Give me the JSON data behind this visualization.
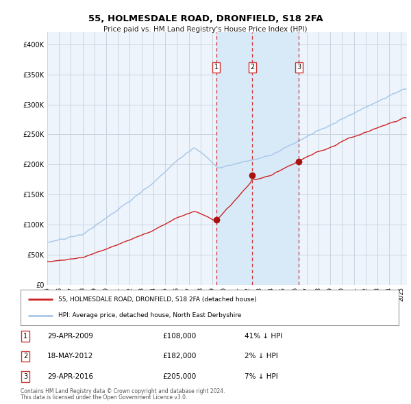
{
  "title": "55, HOLMESDALE ROAD, DRONFIELD, S18 2FA",
  "subtitle": "Price paid vs. HM Land Registry's House Price Index (HPI)",
  "legend_line1": "55, HOLMESDALE ROAD, DRONFIELD, S18 2FA (detached house)",
  "legend_line2": "HPI: Average price, detached house, North East Derbyshire",
  "footer1": "Contains HM Land Registry data © Crown copyright and database right 2024.",
  "footer2": "This data is licensed under the Open Government Licence v3.0.",
  "transactions": [
    {
      "num": 1,
      "date": "29-APR-2009",
      "price": 108000,
      "pct": "41%",
      "dir": "↓"
    },
    {
      "num": 2,
      "date": "18-MAY-2012",
      "price": 182000,
      "pct": "2%",
      "dir": "↓"
    },
    {
      "num": 3,
      "date": "29-APR-2016",
      "price": 205000,
      "pct": "7%",
      "dir": "↓"
    }
  ],
  "t1_year": 2009.33,
  "t2_year": 2012.38,
  "t3_year": 2016.33,
  "hpi_color": "#aac8e8",
  "price_color": "#cc2222",
  "dot_color": "#aa1111",
  "vline_color": "#cc3333",
  "shade_color": "#d8eaf8",
  "background_color": "#ffffff",
  "plot_bg_color": "#eef4fc",
  "grid_color": "#c8d4e0",
  "ylim": [
    0,
    420000
  ],
  "yticks": [
    0,
    50000,
    100000,
    150000,
    200000,
    250000,
    300000,
    350000,
    400000
  ],
  "year_start": 1995,
  "year_end": 2025
}
